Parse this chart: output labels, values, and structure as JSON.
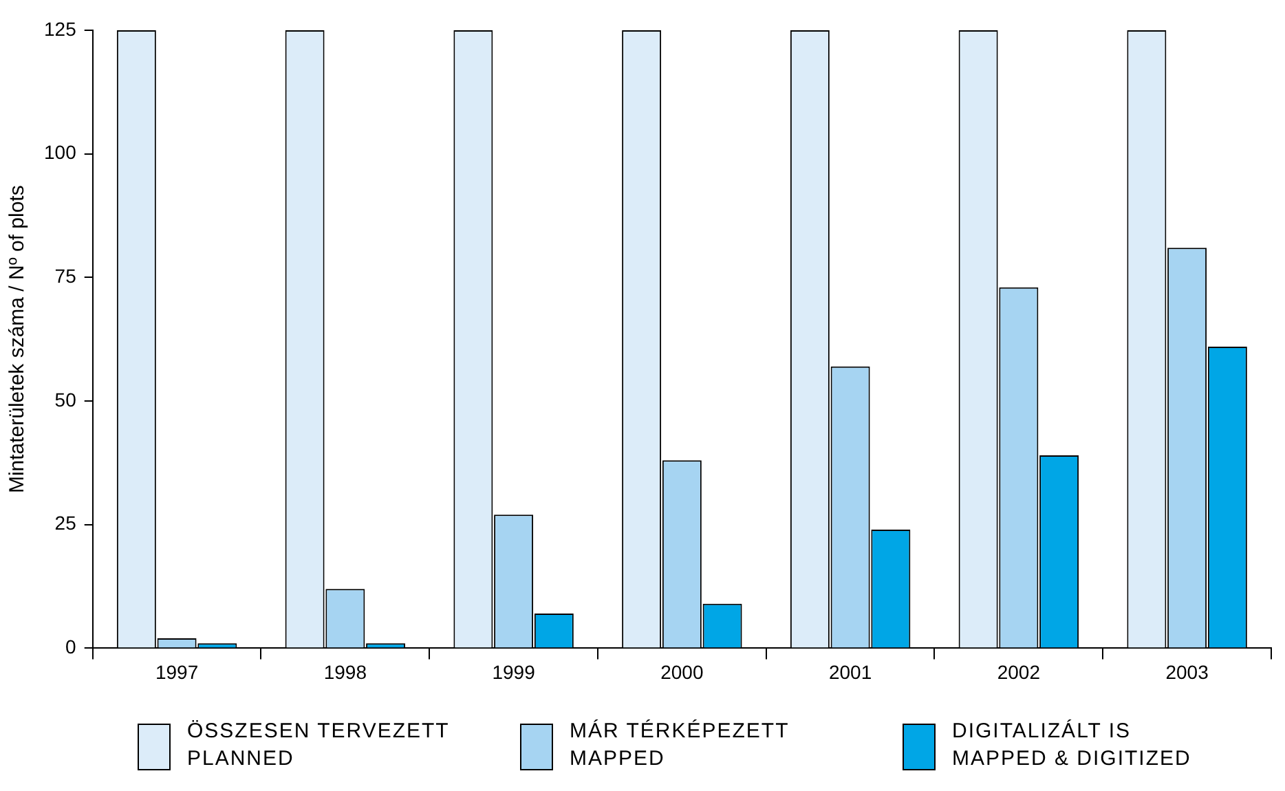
{
  "chart_data": {
    "type": "bar",
    "ylabel": "Mintaterületek száma / Nº of plots",
    "categories": [
      "1997",
      "1998",
      "1999",
      "2000",
      "2001",
      "2002",
      "2003"
    ],
    "series": [
      {
        "name": "ÖSSZESEN TERVEZETT\nPLANNED",
        "color": "#dcecf9",
        "values": [
          125,
          125,
          125,
          125,
          125,
          125,
          125
        ]
      },
      {
        "name": "MÁR TÉRKÉPEZETT\nMAPPED",
        "color": "#a6d4f2",
        "values": [
          2,
          12,
          27,
          38,
          57,
          73,
          81
        ]
      },
      {
        "name": "DIGITALIZÁLT IS\nMAPPED & DIGITIZED",
        "color": "#00a6e6",
        "values": [
          1,
          1,
          7,
          9,
          24,
          39,
          61
        ]
      }
    ],
    "ylim": [
      0,
      125
    ],
    "yticks": [
      0,
      25,
      50,
      75,
      100,
      125
    ],
    "grid": false,
    "legend": "bottom"
  }
}
